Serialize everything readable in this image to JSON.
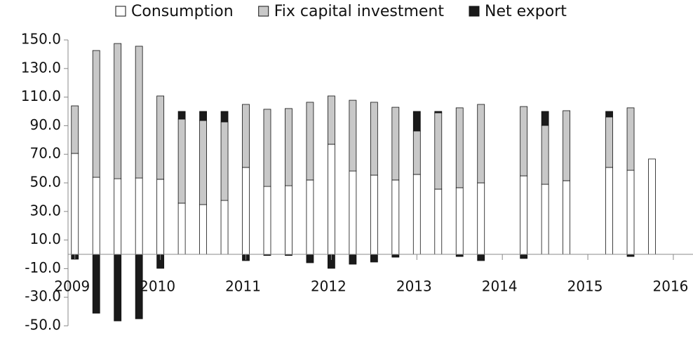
{
  "chart_data": {
    "type": "bar",
    "stacked": true,
    "x": [
      2009,
      2009.25,
      2009.5,
      2009.75,
      2010,
      2010.25,
      2010.5,
      2010.75,
      2011,
      2011.25,
      2011.5,
      2011.75,
      2012,
      2012.25,
      2012.5,
      2012.75,
      2013,
      2013.25,
      2013.5,
      2013.75,
      2014.25,
      2014.5,
      2014.75,
      2015.25,
      2015.5,
      2015.75
    ],
    "series": [
      {
        "name": "Consumption",
        "color": "#ffffff",
        "values": [
          70.6,
          53.9,
          52.9,
          53.4,
          52.5,
          35.8,
          34.8,
          37.7,
          60.8,
          47.5,
          48,
          52,
          77,
          58.3,
          55.4,
          52,
          55.9,
          45.6,
          46.6,
          50,
          54.9,
          49,
          51.5,
          60.8,
          58.8,
          66.7
        ]
      },
      {
        "name": "Fix capital investment",
        "color": "#c8c8c8",
        "values": [
          33.3,
          88.7,
          94.6,
          92.2,
          58.3,
          58.8,
          58.8,
          54.9,
          44.1,
          54,
          54,
          54.4,
          33.8,
          49.5,
          51,
          50.9,
          30.4,
          53.4,
          55.9,
          54.9,
          48.5,
          41.2,
          49,
          35.3,
          43.7,
          0
        ]
      },
      {
        "name": "Net export",
        "color": "#1a1a1a",
        "values": [
          -3.4,
          -41.2,
          -46.6,
          -45.1,
          -9.8,
          5.4,
          6.4,
          7.4,
          -4.4,
          -0.8,
          -0.8,
          -5.9,
          -9.8,
          -6.9,
          -5.4,
          -2,
          13.7,
          1,
          -1.5,
          -4.4,
          -2.9,
          9.8,
          0,
          3.9,
          -1.5,
          0
        ]
      }
    ],
    "ylim": [
      -50,
      150
    ],
    "yticks": [
      {
        "value": -50,
        "label": "-50.0"
      },
      {
        "value": -30,
        "label": "-30.0"
      },
      {
        "value": -10,
        "label": "-10.0"
      },
      {
        "value": 10,
        "label": "10.0"
      },
      {
        "value": 30,
        "label": "30.0"
      },
      {
        "value": 50,
        "label": "50.0"
      },
      {
        "value": 70,
        "label": "70.0"
      },
      {
        "value": 90,
        "label": "90.0"
      },
      {
        "value": 110,
        "label": "110.0"
      },
      {
        "value": 130,
        "label": "130.0"
      },
      {
        "value": 150,
        "label": "150.0"
      }
    ],
    "xlim": [
      2008.92,
      2016.23
    ],
    "xticks": [
      2009,
      2010,
      2011,
      2012,
      2013,
      2014,
      2015,
      2016
    ],
    "legend": "top"
  }
}
